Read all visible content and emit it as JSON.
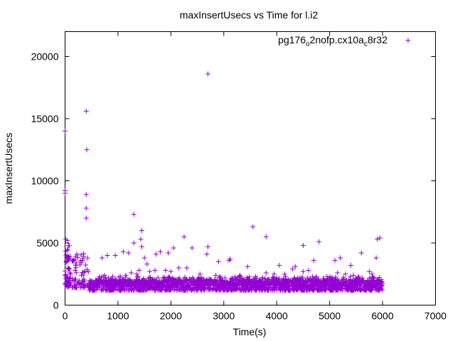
{
  "chart_data": {
    "type": "scatter",
    "title": "maxInsertUsecs vs Time for l.i2",
    "xlabel": "Time(s)",
    "ylabel": "maxInsertUsecs",
    "xlim": [
      0,
      7000
    ],
    "ylim": [
      0,
      22000
    ],
    "xticks": [
      0,
      1000,
      2000,
      3000,
      4000,
      5000,
      6000,
      7000
    ],
    "yticks": [
      0,
      5000,
      10000,
      15000,
      20000
    ],
    "grid": false,
    "legend_position": "top-right",
    "marker": "plus",
    "color": "#9400d3",
    "series": [
      {
        "name": "pg176_o2nofp.cx10a_c8r32",
        "name_parts": {
          "base": "pg176",
          "sub1": "o",
          "mid": "2nofp.cx10a",
          "sub2": "c",
          "tail": "8r32"
        },
        "points": [
          [
            0,
            14000
          ],
          [
            0,
            9200
          ],
          [
            0,
            9000
          ],
          [
            10,
            5300
          ],
          [
            40,
            5200
          ],
          [
            400,
            15600
          ],
          [
            410,
            12500
          ],
          [
            400,
            8900
          ],
          [
            400,
            7800
          ],
          [
            400,
            7000
          ],
          [
            2700,
            18600
          ],
          [
            1300,
            7300
          ],
          [
            1450,
            6000
          ],
          [
            3550,
            6300
          ],
          [
            2250,
            5500
          ],
          [
            3800,
            5500
          ],
          [
            4800,
            5100
          ],
          [
            5950,
            5400
          ],
          [
            5900,
            5300
          ],
          [
            1430,
            5300
          ],
          [
            1300,
            5000
          ],
          [
            1100,
            4300
          ],
          [
            1200,
            4200
          ],
          [
            1450,
            4700
          ],
          [
            2050,
            4600
          ],
          [
            2400,
            4600
          ],
          [
            2700,
            4700
          ],
          [
            2680,
            4100
          ],
          [
            1800,
            4300
          ],
          [
            1950,
            4200
          ],
          [
            1720,
            4100
          ],
          [
            1500,
            3800
          ],
          [
            950,
            4000
          ],
          [
            800,
            4000
          ],
          [
            700,
            3800
          ],
          [
            4500,
            4800
          ],
          [
            5200,
            3800
          ],
          [
            5600,
            4200
          ],
          [
            4700,
            3600
          ],
          [
            5100,
            3600
          ],
          [
            5400,
            3200
          ],
          [
            5880,
            3800
          ],
          [
            3100,
            3600
          ],
          [
            3120,
            3700
          ],
          [
            2900,
            3500
          ],
          [
            3450,
            3100
          ],
          [
            4050,
            3200
          ],
          [
            4300,
            2900
          ],
          [
            4350,
            3100
          ],
          [
            4500,
            2700
          ],
          [
            4600,
            2800
          ],
          [
            5150,
            2600
          ],
          [
            5300,
            2500
          ],
          [
            5450,
            2400
          ],
          [
            5750,
            2700
          ],
          [
            5800,
            2500
          ],
          [
            2300,
            3000
          ],
          [
            2150,
            3000
          ],
          [
            1550,
            3300
          ],
          [
            1700,
            2800
          ],
          [
            1900,
            2800
          ],
          [
            1600,
            2700
          ],
          [
            1400,
            2800
          ],
          [
            1350,
            2500
          ],
          [
            1250,
            2600
          ],
          [
            1150,
            2400
          ],
          [
            1050,
            2300
          ],
          [
            900,
            2300
          ],
          [
            750,
            2400
          ],
          [
            650,
            2300
          ],
          [
            2000,
            2700
          ],
          [
            2550,
            2500
          ],
          [
            2850,
            2400
          ],
          [
            3300,
            2400
          ],
          [
            3600,
            2300
          ],
          [
            3800,
            2600
          ],
          [
            3950,
            2500
          ],
          [
            4150,
            2500
          ],
          [
            4750,
            2300
          ],
          [
            4950,
            2300
          ],
          [
            5550,
            2300
          ]
        ]
      }
    ],
    "dense_cluster": [
      {
        "x_range": [
          0,
          100
        ],
        "y_range": [
          1500,
          4800
        ]
      },
      {
        "x_range": [
          100,
          450
        ],
        "y_range": [
          1400,
          4200
        ]
      },
      {
        "x_range": [
          450,
          6000
        ],
        "y_range": [
          1200,
          2300
        ]
      }
    ]
  }
}
